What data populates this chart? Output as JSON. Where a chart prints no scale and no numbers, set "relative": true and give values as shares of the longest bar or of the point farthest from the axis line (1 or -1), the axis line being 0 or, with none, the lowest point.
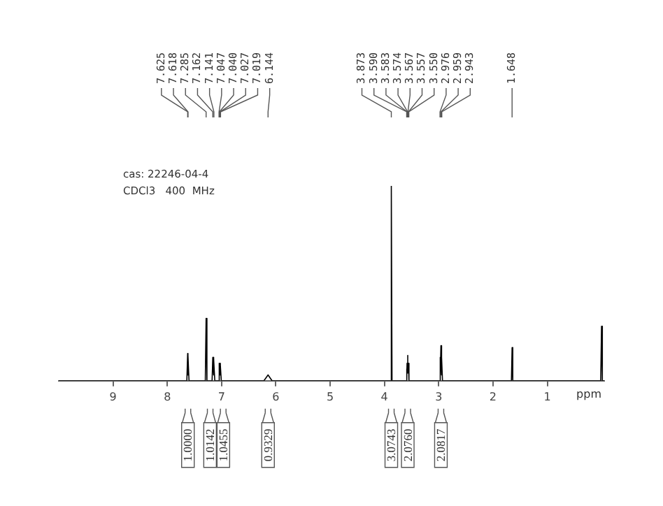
{
  "chart_data": {
    "type": "line",
    "relative": true,
    "color": "#000000",
    "xlabel": "ppm",
    "xlim": [
      10,
      -0.05
    ],
    "xticks": [
      9,
      8,
      7,
      6,
      5,
      4,
      3,
      2,
      1
    ],
    "grid": false,
    "legend": false,
    "marker": "none",
    "line_style": "solid",
    "x": [
      10,
      7.64,
      7.625,
      7.621,
      7.618,
      7.6,
      7.3,
      7.285,
      7.27,
      7.175,
      7.162,
      7.151,
      7.141,
      7.125,
      7.06,
      7.047,
      7.043,
      7.04,
      7.033,
      7.027,
      7.023,
      7.019,
      7.005,
      6.22,
      6.144,
      6.07,
      3.89,
      3.873,
      3.86,
      3.6,
      3.59,
      3.586,
      3.583,
      3.578,
      3.574,
      3.57,
      3.567,
      3.562,
      3.557,
      3.553,
      3.55,
      3.54,
      2.99,
      2.976,
      2.967,
      2.959,
      2.951,
      2.943,
      2.93,
      1.66,
      1.648,
      1.635,
      0.015,
      0,
      -0.015,
      -0.05
    ],
    "values": [
      0,
      0,
      0.14,
      0.03,
      0.13,
      0,
      0,
      0.32,
      0,
      0,
      0.12,
      0.03,
      0.11,
      0,
      0,
      0.09,
      0.04,
      0.08,
      0.03,
      0.09,
      0.04,
      0.08,
      0,
      0,
      0.03,
      0,
      0,
      1,
      0,
      0,
      0.06,
      0.03,
      0.09,
      0.04,
      0.12,
      0.05,
      0.13,
      0.04,
      0.09,
      0.03,
      0.06,
      0,
      0,
      0.12,
      0.03,
      0.18,
      0.03,
      0.12,
      0,
      0,
      0.17,
      0,
      0,
      0.28,
      0,
      0
    ],
    "annotations": [
      "cas: 22246-04-4",
      "CDCl3   400  MHz",
      {
        "text": "7.625",
        "x": 7.625
      },
      {
        "text": "7.618",
        "x": 7.618
      },
      {
        "text": "7.285",
        "x": 7.285
      },
      {
        "text": "7.162",
        "x": 7.162
      },
      {
        "text": "7.141",
        "x": 7.141
      },
      {
        "text": "7.047",
        "x": 7.047
      },
      {
        "text": "7.040",
        "x": 7.04
      },
      {
        "text": "7.027",
        "x": 7.027
      },
      {
        "text": "7.019",
        "x": 7.019
      },
      {
        "text": "6.144",
        "x": 6.144
      },
      {
        "text": "3.873",
        "x": 3.873
      },
      {
        "text": "3.590",
        "x": 3.59
      },
      {
        "text": "3.583",
        "x": 3.583
      },
      {
        "text": "3.574",
        "x": 3.574
      },
      {
        "text": "3.567",
        "x": 3.567
      },
      {
        "text": "3.557",
        "x": 3.557
      },
      {
        "text": "3.550",
        "x": 3.55
      },
      {
        "text": "2.976",
        "x": 2.976
      },
      {
        "text": "2.959",
        "x": 2.959
      },
      {
        "text": "2.943",
        "x": 2.943
      },
      {
        "text": "1.648",
        "x": 1.648
      },
      {
        "text": "1.0000",
        "x": 7.62
      },
      {
        "text": "1.0142",
        "x": 7.21
      },
      {
        "text": "1.0455",
        "x": 6.97
      },
      {
        "text": "0.9329",
        "x": 6.144
      },
      {
        "text": "3.0743",
        "x": 3.873
      },
      {
        "text": "2.0760",
        "x": 3.57
      },
      {
        "text": "2.0817",
        "x": 2.959
      }
    ]
  }
}
